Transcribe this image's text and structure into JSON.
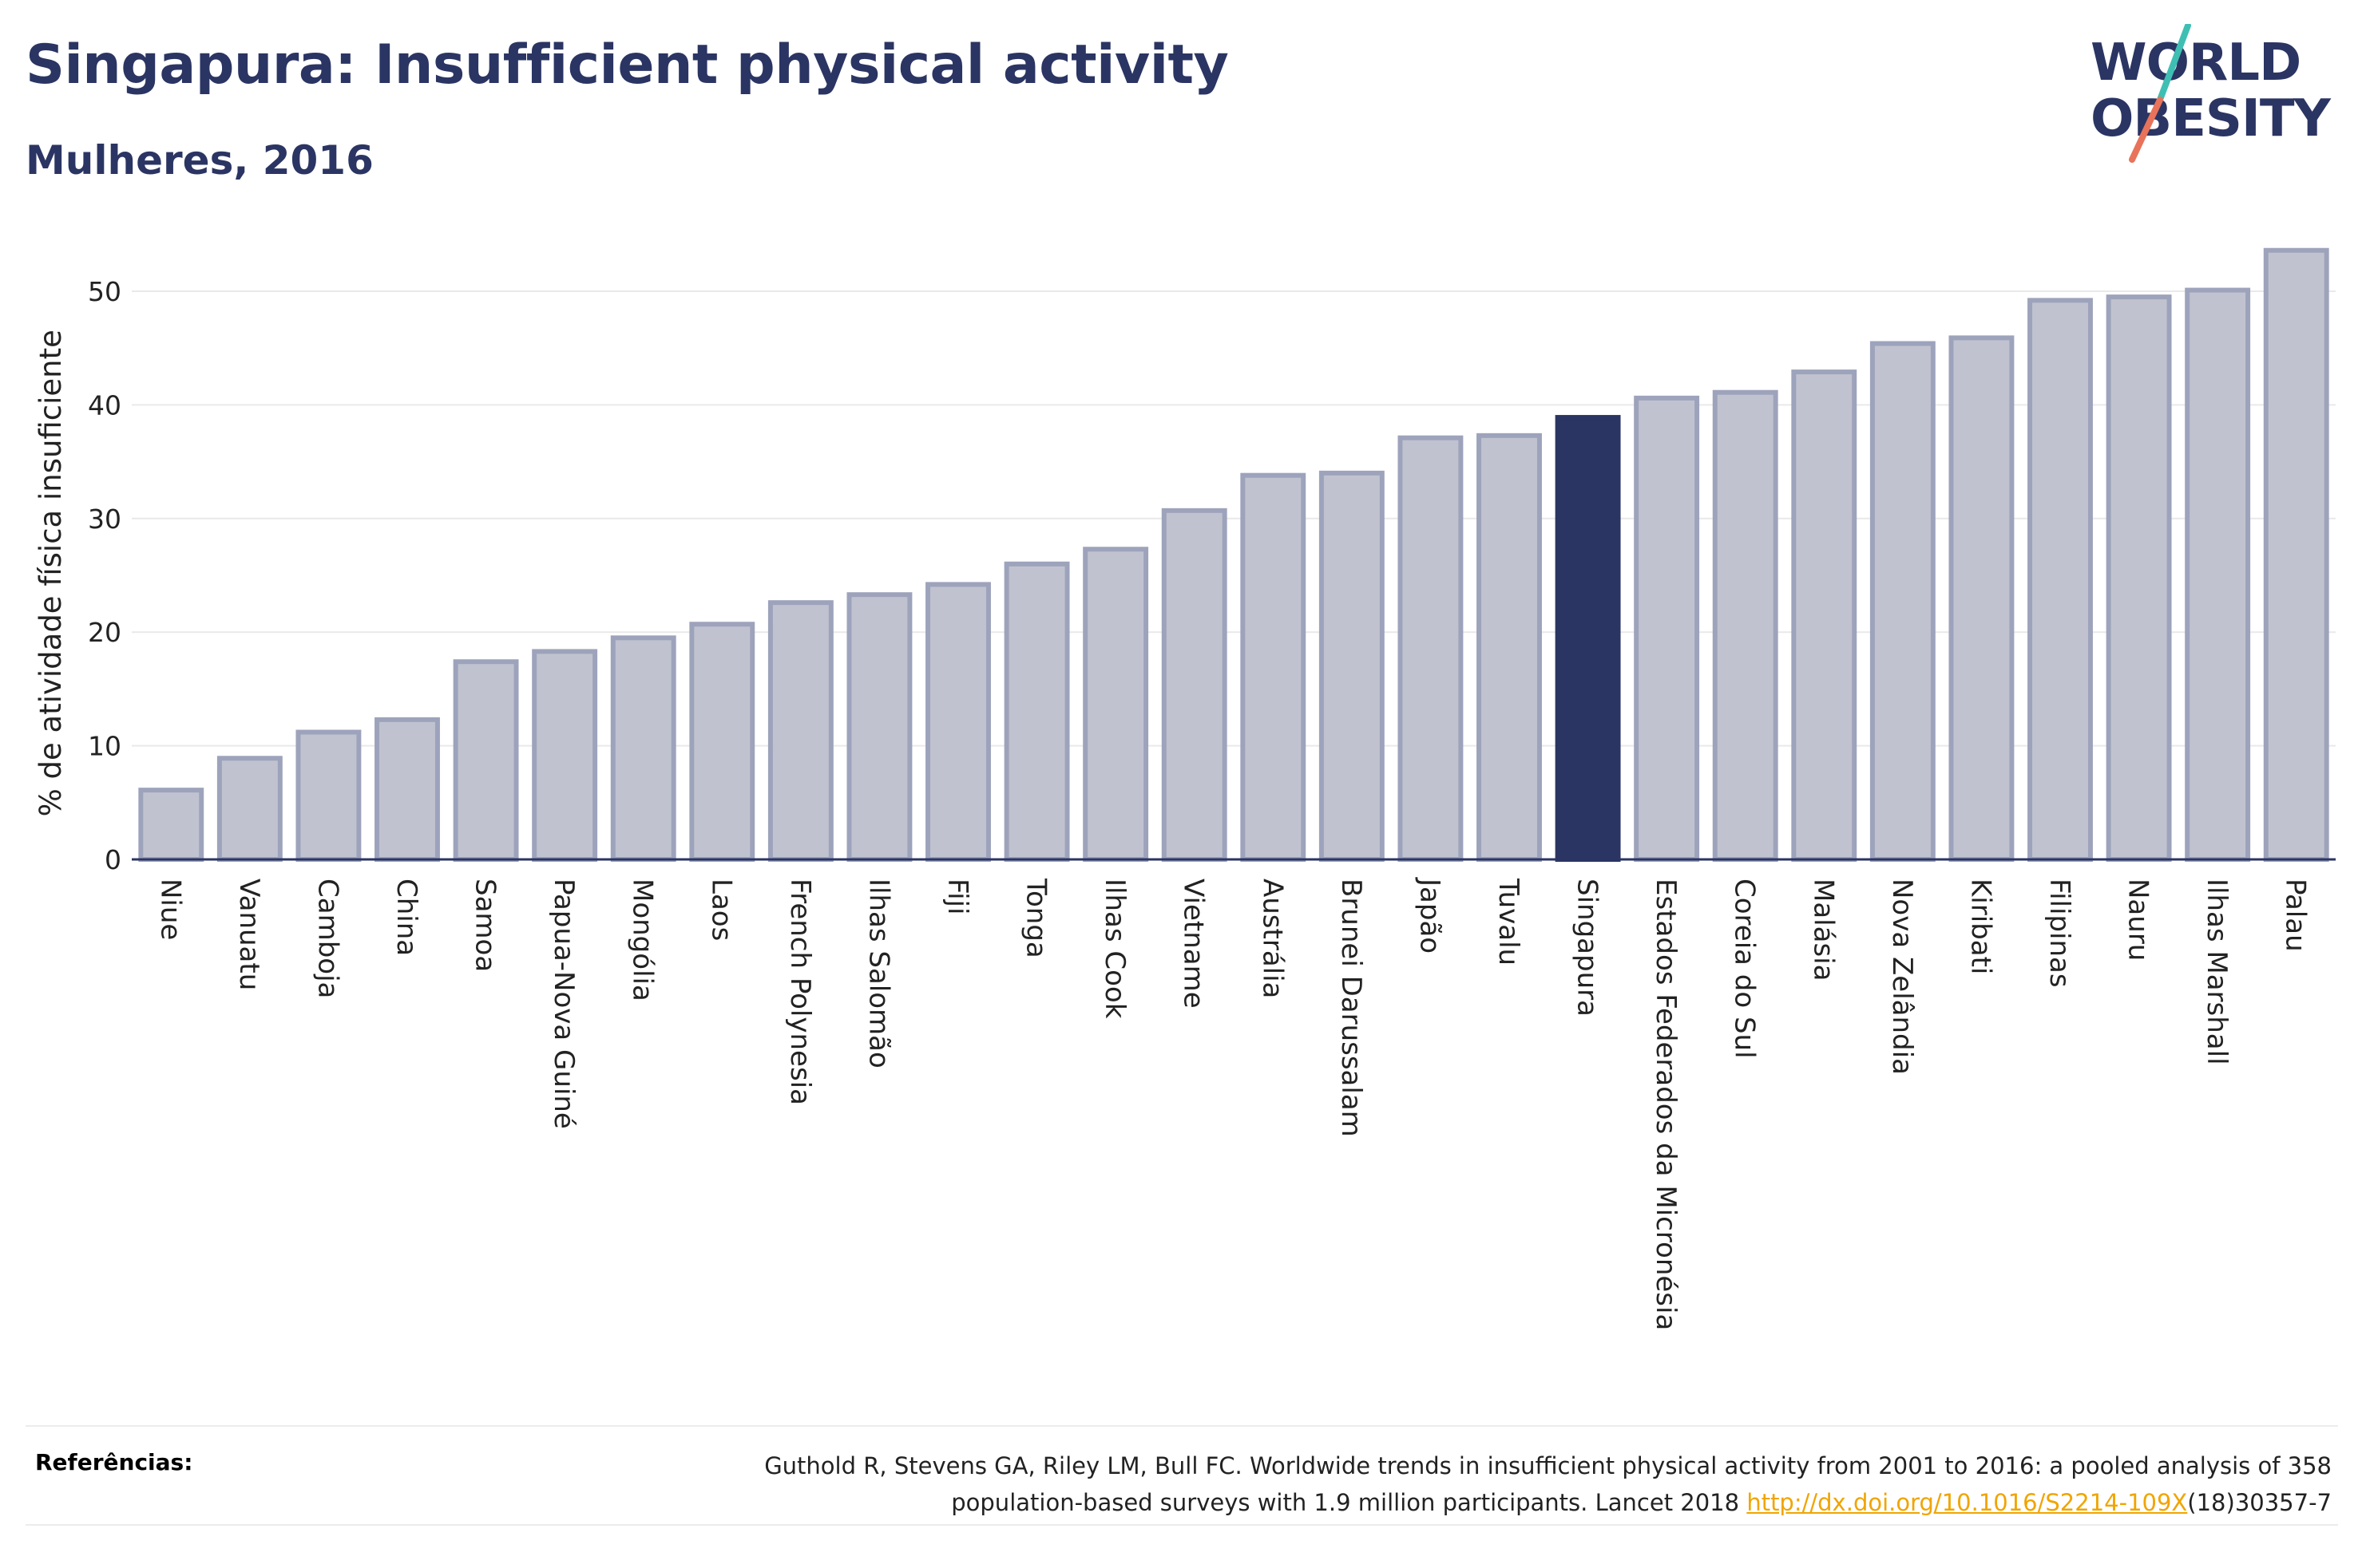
{
  "header": {
    "title": "Singapura: Insufficient physical activity",
    "subtitle": "Mulheres, 2016"
  },
  "logo": {
    "line1": "WORLD",
    "line2": "OBESITY"
  },
  "colors": {
    "bar_fill": "#c0c3cf",
    "bar_stroke": "#9ea3bc",
    "highlight": "#2b3563",
    "grid": "#e9e9e9",
    "axis": "#2b3563",
    "logo_text": "#2b3563",
    "logo_slash_top": "#3fbfb3",
    "logo_slash_bottom": "#e8735a",
    "link": "#f0a500"
  },
  "chart_data": {
    "type": "bar",
    "title": "Singapura: Insufficient physical activity",
    "subtitle": "Mulheres, 2016",
    "xlabel": "",
    "ylabel": "% de atividade física insuficiente",
    "ylim": [
      0,
      56
    ],
    "yticks": [
      0,
      10,
      20,
      30,
      40,
      50
    ],
    "grid": true,
    "highlight": "Singapura",
    "categories": [
      "Niue",
      "Vanuatu",
      "Camboja",
      "China",
      "Samoa",
      "Papua-Nova Guiné",
      "Mongólia",
      "Laos",
      "French Polynesia",
      "Ilhas Salomão",
      "Fiji",
      "Tonga",
      "Ilhas Cook",
      "Vietname",
      "Austrália",
      "Brunei Darussalam",
      "Japão",
      "Tuvalu",
      "Singapura",
      "Estados Federados da Micronésia",
      "Coreia do Sul",
      "Malásia",
      "Nova Zelândia",
      "Kiribati",
      "Filipinas",
      "Nauru",
      "Ilhas Marshall",
      "Palau"
    ],
    "values": [
      6.1,
      8.9,
      11.2,
      12.3,
      17.4,
      18.3,
      19.5,
      20.7,
      22.6,
      23.3,
      24.2,
      26.0,
      27.3,
      30.7,
      33.8,
      34.0,
      37.1,
      37.3,
      38.9,
      40.6,
      41.1,
      42.9,
      45.4,
      45.9,
      49.2,
      49.5,
      50.1,
      53.6
    ]
  },
  "references": {
    "label": "Referências:",
    "text_line1": "Guthold R, Stevens GA, Riley LM, Bull FC. Worldwide trends in insufficient physical activity from 2001 to 2016: a pooled analysis of 358",
    "text_line2_before": "population-based surveys with 1.9 million participants. Lancet 2018 ",
    "link": "http://dx.doi.org/10.1016/S2214-109X",
    "text_line2_after": "(18)30357-7"
  }
}
